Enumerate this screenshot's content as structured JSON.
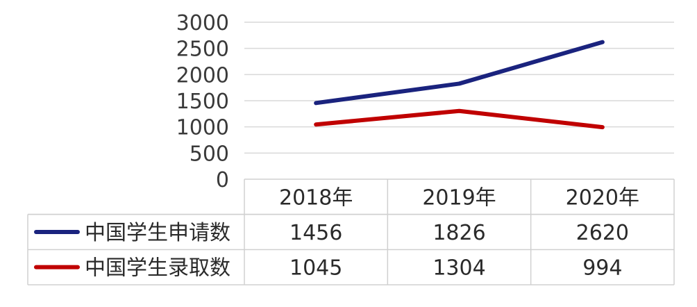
{
  "chart_data": {
    "type": "line",
    "categories": [
      "2018年",
      "2019年",
      "2020年"
    ],
    "series": [
      {
        "name": "中国学生申请数",
        "values": [
          1456,
          1826,
          2620
        ],
        "color": "#1a237e"
      },
      {
        "name": "中国学生录取数",
        "values": [
          1045,
          1304,
          994
        ],
        "color": "#c00000"
      }
    ],
    "ylim": [
      0,
      3000
    ],
    "yticks": [
      0,
      500,
      1000,
      1500,
      2000,
      2500,
      3000
    ],
    "grid": true,
    "legend": "data-table",
    "title": "",
    "xlabel": "",
    "ylabel": ""
  }
}
